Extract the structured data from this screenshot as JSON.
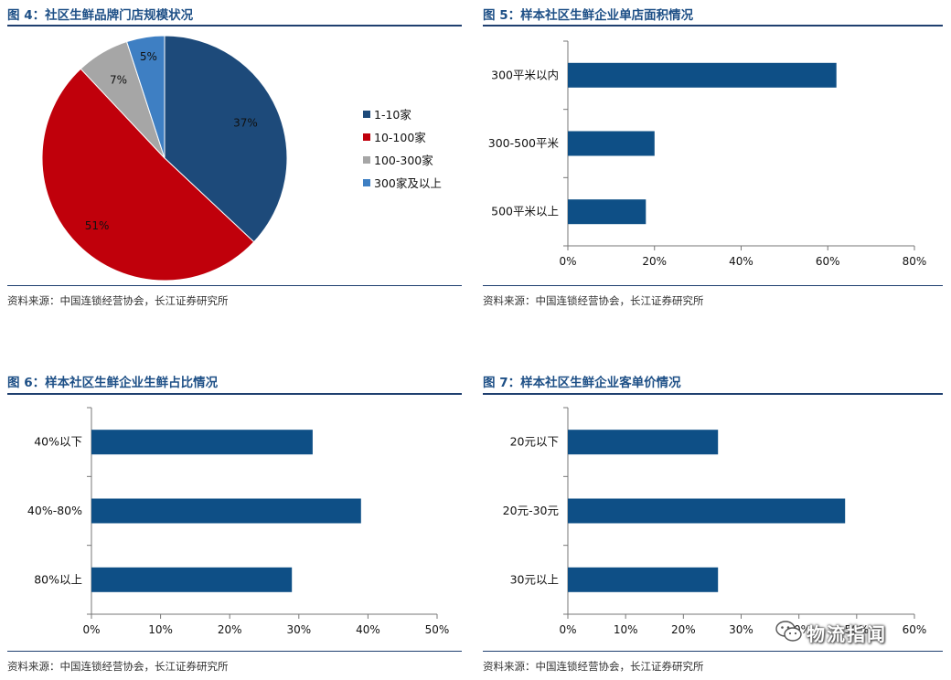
{
  "colors": {
    "title": "#1d4f86",
    "rule": "#1f3f6f",
    "bar": "#0e4f86",
    "pie": [
      "#1d4a7a",
      "#c0000b",
      "#a6a6a6",
      "#3e7fc3"
    ]
  },
  "source_text": "资料来源：中国连锁经营协会，长江证券研究所",
  "watermark": {
    "text": "物流指闻",
    "icon": "wechat-icon"
  },
  "chart_data": [
    {
      "id": "fig4",
      "type": "pie",
      "title": "图 4：社区生鲜品牌门店规模状况",
      "categories": [
        "1-10家",
        "10-100家",
        "100-300家",
        "300家及以上"
      ],
      "values": [
        37,
        51,
        7,
        5
      ],
      "labels": [
        "37%",
        "51%",
        "7%",
        "5%"
      ],
      "legend_position": "right"
    },
    {
      "id": "fig5",
      "type": "bar",
      "orientation": "horizontal",
      "title": "图 5：样本社区生鲜企业单店面积情况",
      "categories": [
        "300平米以内",
        "300-500平米",
        "500平米以上"
      ],
      "values": [
        62,
        20,
        18
      ],
      "xlim": [
        0,
        80
      ],
      "xticks": [
        "0%",
        "20%",
        "40%",
        "60%",
        "80%"
      ],
      "grid": false
    },
    {
      "id": "fig6",
      "type": "bar",
      "orientation": "horizontal",
      "title": "图 6：样本社区生鲜企业生鲜占比情况",
      "categories": [
        "40%以下",
        "40%-80%",
        "80%以上"
      ],
      "values": [
        32,
        39,
        29
      ],
      "xlim": [
        0,
        50
      ],
      "xticks": [
        "0%",
        "10%",
        "20%",
        "30%",
        "40%",
        "50%"
      ],
      "grid": false
    },
    {
      "id": "fig7",
      "type": "bar",
      "orientation": "horizontal",
      "title": "图 7：样本社区生鲜企业客单价情况",
      "categories": [
        "20元以下",
        "20元-30元",
        "30元以上"
      ],
      "values": [
        26,
        48,
        26
      ],
      "xlim": [
        0,
        60
      ],
      "xticks": [
        "0%",
        "10%",
        "20%",
        "30%",
        "40%",
        "50%",
        "60%"
      ],
      "grid": false
    }
  ]
}
